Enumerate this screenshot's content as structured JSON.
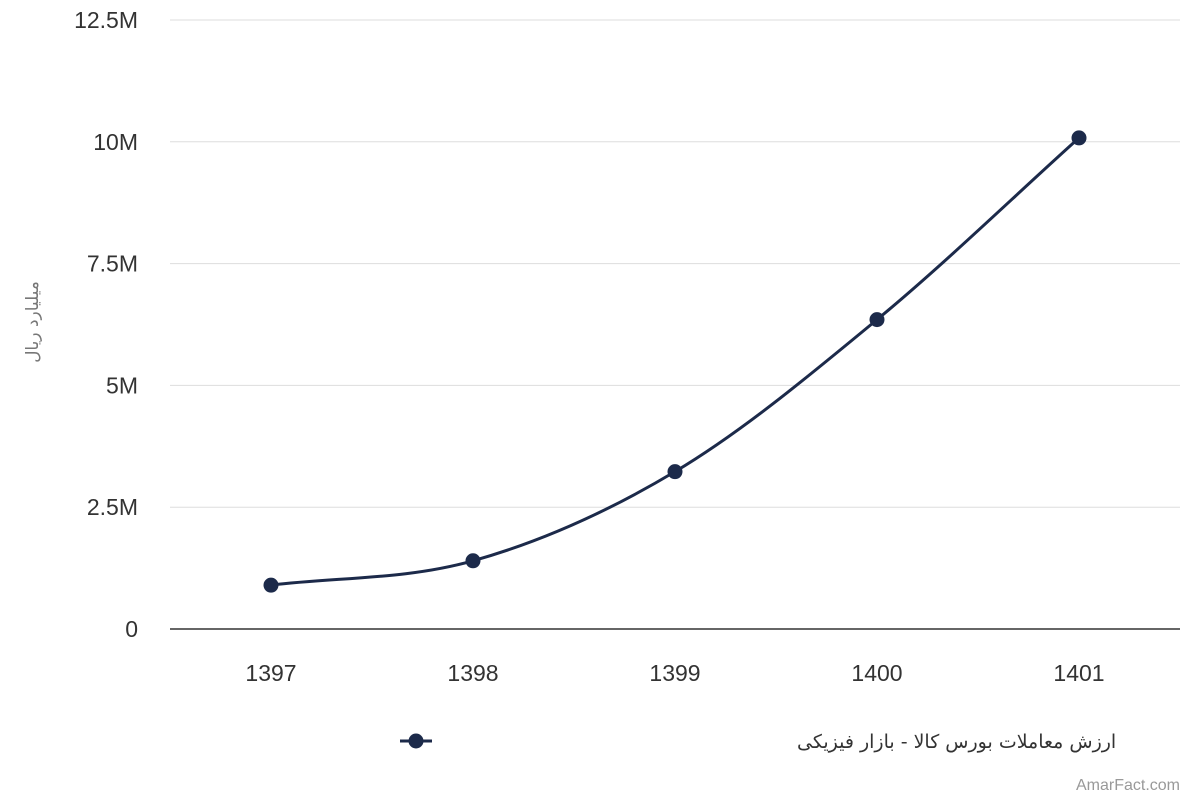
{
  "chart_data": {
    "type": "line",
    "smooth": true,
    "title": "",
    "xlabel": "",
    "ylabel": "میلیارد ریال",
    "categories": [
      "1397",
      "1398",
      "1399",
      "1400",
      "1401"
    ],
    "series": [
      {
        "name": "ارزش معاملات بورس کالا - بازار فیزیکی",
        "color": "#1c2a4a",
        "values": [
          900000,
          1400000,
          3230000,
          6350000,
          10080000
        ]
      }
    ],
    "ylim": [
      0,
      12500000
    ],
    "y_ticks": [
      0,
      2500000,
      5000000,
      7500000,
      10000000,
      12500000
    ],
    "y_tick_labels": [
      "0",
      "2.5M",
      "5M",
      "7.5M",
      "10M",
      "12.5M"
    ],
    "grid": true,
    "legend_position": "bottom-center",
    "colors": {
      "series": "#1c2a4a",
      "grid": "#dddddd",
      "axis": "#333333",
      "text": "#333333",
      "y_title": "#777777",
      "credit": "#999999"
    }
  },
  "credit": "AmarFact.com"
}
